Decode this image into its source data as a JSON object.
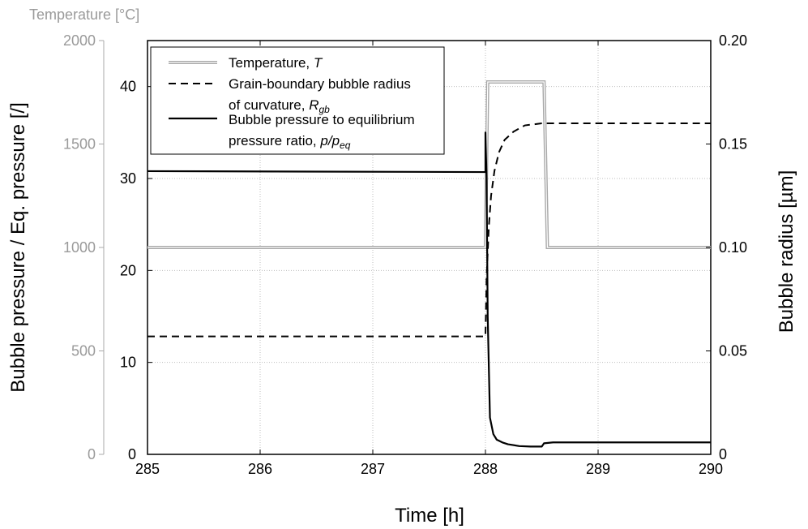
{
  "chart_data": {
    "type": "line",
    "xlabel": "Time [h]",
    "ylabel_left": "Bubble pressure / Eq. pressure [/]",
    "ylabel_right": "Bubble radius [µm]",
    "ylabel_temperature": "Temperature [°C]",
    "xlim": [
      285,
      290
    ],
    "ylim_left": [
      0,
      45
    ],
    "ylim_right": [
      0,
      0.2
    ],
    "ylim_temperature": [
      0,
      2000
    ],
    "x_ticks": [
      "285",
      "286",
      "287",
      "288",
      "289",
      "290"
    ],
    "y_left_ticks": [
      "0",
      "10",
      "20",
      "30",
      "40"
    ],
    "y_right_ticks": [
      "0",
      "0.05",
      "0.10",
      "0.15",
      "0.20"
    ],
    "y_temperature_ticks": [
      "0",
      "500",
      "1000",
      "1500",
      "2000"
    ],
    "grid": true,
    "legend_position": "top-left",
    "legend": [
      {
        "line1": "Temperature, ",
        "line1_italic": "T",
        "line2": "",
        "line2_italic": "",
        "line2_sub": ""
      },
      {
        "line1": "Grain-boundary bubble radius",
        "line1_italic": "",
        "line2": "of curvature, ",
        "line2_italic": "R",
        "line2_sub": "gb"
      },
      {
        "line1": "Bubble pressure to equilibrium",
        "line1_italic": "",
        "line2": "pressure ratio, ",
        "line2_italic": "p/p",
        "line2_sub": "eq"
      }
    ],
    "series": [
      {
        "axis": "temperature",
        "style": "grey-double",
        "points": [
          [
            285,
            1000
          ],
          [
            288.0,
            1000
          ],
          [
            288.02,
            1800
          ],
          [
            288.52,
            1800
          ],
          [
            288.55,
            1000
          ],
          [
            290,
            1000
          ]
        ]
      },
      {
        "axis": "right",
        "style": "dashed",
        "points": [
          [
            285,
            0.057
          ],
          [
            288.0,
            0.057
          ],
          [
            288.01,
            0.085
          ],
          [
            288.03,
            0.11
          ],
          [
            288.05,
            0.125
          ],
          [
            288.08,
            0.137
          ],
          [
            288.12,
            0.146
          ],
          [
            288.17,
            0.152
          ],
          [
            288.25,
            0.156
          ],
          [
            288.35,
            0.159
          ],
          [
            288.5,
            0.16
          ],
          [
            289,
            0.16
          ],
          [
            290,
            0.16
          ]
        ]
      },
      {
        "axis": "left",
        "style": "solid",
        "points": [
          [
            285,
            30.8
          ],
          [
            288.0,
            30.7
          ],
          [
            288.0,
            35
          ],
          [
            288.01,
            30
          ],
          [
            288.02,
            15
          ],
          [
            288.04,
            4
          ],
          [
            288.07,
            2.2
          ],
          [
            288.1,
            1.6
          ],
          [
            288.15,
            1.3
          ],
          [
            288.2,
            1.1
          ],
          [
            288.3,
            0.9
          ],
          [
            288.4,
            0.85
          ],
          [
            288.5,
            0.85
          ],
          [
            288.52,
            1.2
          ],
          [
            288.6,
            1.3
          ],
          [
            290,
            1.3
          ]
        ]
      }
    ]
  }
}
